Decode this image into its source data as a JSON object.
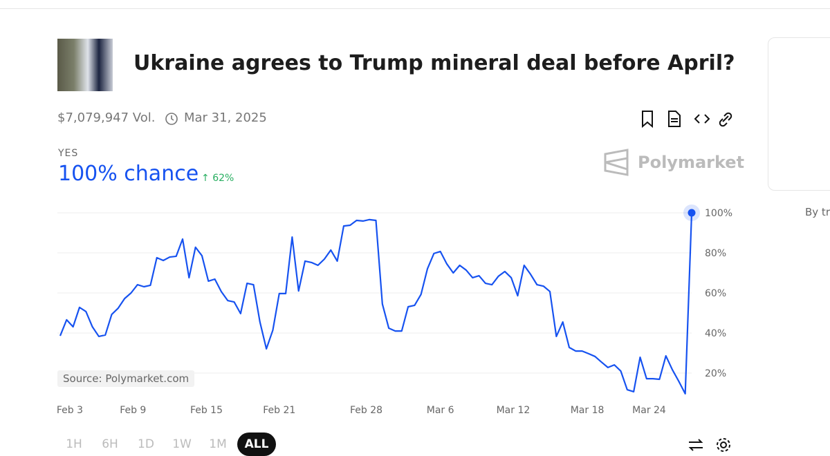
{
  "header": {
    "title": "Ukraine agrees to Trump mineral deal before April?",
    "volume": "$7,079,947 Vol.",
    "end_date": "Mar 31, 2025"
  },
  "outcome": {
    "label": "YES",
    "chance": "100% chance",
    "change": "62%"
  },
  "brand": "Polymarket",
  "source": "Source: Polymarket.com",
  "time_buttons": [
    "1H",
    "6H",
    "1D",
    "1W",
    "1M",
    "ALL"
  ],
  "side_text": "By tr",
  "chart_data": {
    "type": "line",
    "series": [
      {
        "color": "#1652f0",
        "values": [
          38.6,
          46.6,
          43.1,
          52.8,
          50.7,
          43.1,
          38.3,
          39,
          49.3,
          52.4,
          57.2,
          60,
          64.1,
          63.1,
          63.8,
          77.6,
          76.2,
          77.9,
          78.3,
          86.9,
          67.6,
          82.8,
          78.6,
          65.9,
          66.9,
          60.7,
          56.2,
          55.5,
          49.7,
          64.8,
          64.1,
          45.5,
          32.1,
          41.4,
          59.7,
          59.7,
          87.9,
          61,
          75.9,
          75.2,
          73.8,
          76.9,
          81.4,
          75.9,
          93.4,
          93.8,
          96.2,
          95.9,
          96.6,
          96.2,
          54.5,
          42.4,
          41,
          41,
          53.1,
          53.8,
          59.3,
          72.1,
          79.7,
          80.7,
          74.5,
          70,
          73.8,
          71.4,
          67.6,
          68.6,
          64.8,
          64.1,
          68.3,
          70.7,
          67.6,
          58.6,
          73.8,
          69.3,
          64.1,
          63.4,
          60.7,
          38.3,
          45.5,
          32.8,
          31,
          31,
          29.7,
          28.3,
          25.5,
          22.8,
          24.1,
          21,
          11.7,
          10.7,
          27.9,
          17.2,
          17.2,
          16.9,
          28.6,
          21.7,
          15.9,
          9.7,
          100
        ]
      }
    ],
    "xlim": [
      0,
      98
    ],
    "xticks": [
      {
        "value": 1.5,
        "label": "Feb 3"
      },
      {
        "value": 11.3,
        "label": "Feb 9"
      },
      {
        "value": 22.7,
        "label": "Feb 15"
      },
      {
        "value": 34,
        "label": "Feb 21"
      },
      {
        "value": 47.5,
        "label": "Feb 28"
      },
      {
        "value": 59,
        "label": "Mar 6"
      },
      {
        "value": 70.3,
        "label": "Mar 12"
      },
      {
        "value": 81.8,
        "label": "Mar 18"
      },
      {
        "value": 91.4,
        "label": "Mar 24"
      }
    ],
    "ylim": [
      0,
      100
    ],
    "yticks": [
      {
        "value": 20,
        "label": "20%"
      },
      {
        "value": 40,
        "label": "40%"
      },
      {
        "value": 60,
        "label": "60%"
      },
      {
        "value": 80,
        "label": "80%"
      },
      {
        "value": 100,
        "label": "100%"
      }
    ],
    "grid": true
  }
}
